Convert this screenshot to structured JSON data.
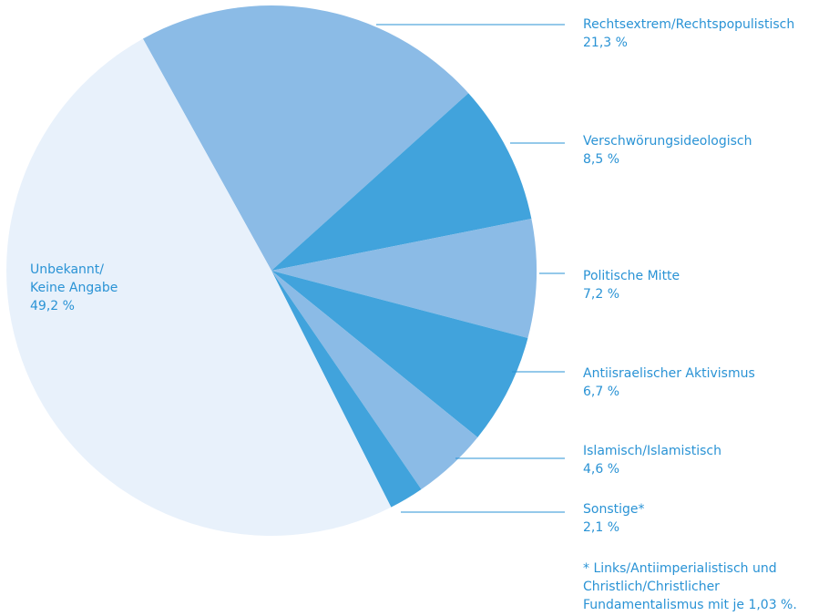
{
  "chart_data": {
    "type": "pie",
    "categories": [
      "Rechtsextrem/Rechtspopulistisch",
      "Verschwörungsideologisch",
      "Politische Mitte",
      "Antiisraelischer Aktivismus",
      "Islamisch/Islamistisch",
      "Sonstige*",
      "Unbekannt/\nKeine Angabe"
    ],
    "values": [
      21.3,
      8.5,
      7.2,
      6.7,
      4.6,
      2.1,
      49.2
    ],
    "value_labels": [
      "21,3 %",
      "8,5 %",
      "7,2 %",
      "6,7 %",
      "4,6 %",
      "2,1 %",
      "49,2 %"
    ],
    "colors": [
      "#8bbbe6",
      "#41a3dc",
      "#8bbbe6",
      "#41a3dc",
      "#8bbbe6",
      "#41a3dc",
      "#e8f1fb"
    ],
    "note": "* Links/Antiimperialistisch und\nChristlich/Christlicher\nFundamentalismus mit je 1,03 %."
  }
}
